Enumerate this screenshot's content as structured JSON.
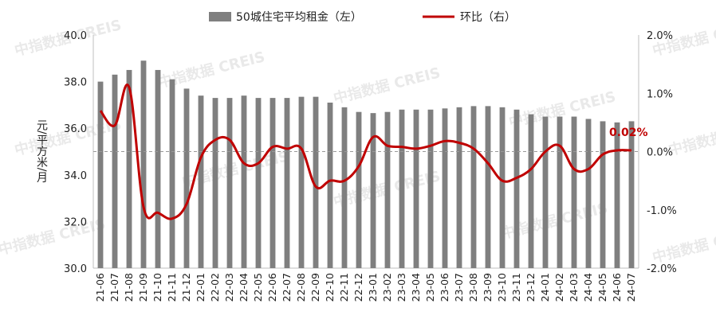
{
  "chart_data": {
    "type": "bar+line",
    "categories": [
      "21-06",
      "21-07",
      "21-08",
      "21-09",
      "21-10",
      "21-11",
      "21-12",
      "22-01",
      "22-02",
      "22-03",
      "22-04",
      "22-05",
      "22-06",
      "22-07",
      "22-08",
      "22-09",
      "22-10",
      "22-11",
      "22-12",
      "23-01",
      "23-02",
      "23-03",
      "23-04",
      "23-05",
      "23-06",
      "23-07",
      "23-08",
      "23-09",
      "23-10",
      "23-11",
      "23-12",
      "24-01",
      "24-02",
      "24-03",
      "24-04",
      "24-05",
      "24-06",
      "24-07"
    ],
    "series": [
      {
        "name": "50城住宅平均租金（左）",
        "type": "bar",
        "axis": "left",
        "color": "#7f7f7f",
        "values": [
          38.0,
          38.3,
          38.5,
          38.9,
          38.5,
          38.1,
          37.7,
          37.4,
          37.3,
          37.3,
          37.4,
          37.3,
          37.3,
          37.3,
          37.35,
          37.35,
          37.1,
          36.9,
          36.7,
          36.65,
          36.7,
          36.8,
          36.8,
          36.8,
          36.85,
          36.9,
          36.95,
          36.95,
          36.9,
          36.8,
          36.6,
          36.5,
          36.5,
          36.5,
          36.4,
          36.3,
          36.25,
          36.3
        ]
      },
      {
        "name": "环比（右）",
        "type": "line",
        "axis": "right",
        "color": "#c00000",
        "values": [
          0.7,
          0.45,
          1.1,
          -0.95,
          -1.05,
          -1.15,
          -0.9,
          -0.1,
          0.2,
          0.2,
          -0.2,
          -0.2,
          0.08,
          0.05,
          0.05,
          -0.6,
          -0.5,
          -0.5,
          -0.25,
          0.25,
          0.1,
          0.08,
          0.05,
          0.1,
          0.18,
          0.15,
          0.05,
          -0.2,
          -0.5,
          -0.45,
          -0.3,
          0.0,
          0.1,
          -0.3,
          -0.3,
          -0.05,
          0.02,
          0.02
        ]
      }
    ],
    "y_left": {
      "min": 30.0,
      "max": 40.0,
      "ticks": [
        "30.0",
        "32.0",
        "34.0",
        "36.0",
        "38.0",
        "40.0"
      ],
      "label": "元/平方米/月"
    },
    "y_right": {
      "min": -2.0,
      "max": 2.0,
      "ticks": [
        "-2.0%",
        "-1.0%",
        "0.0%",
        "1.0%",
        "2.0%"
      ]
    },
    "annotation": {
      "text": "0.02%",
      "category": "24-06"
    },
    "legend_position": "top-center",
    "grid": false,
    "zero_line_style": "dashed"
  },
  "watermark": {
    "text": "中指数据 CREIS"
  },
  "colors": {
    "bar": "#7f7f7f",
    "line": "#c00000",
    "axis": "#bfbfbf",
    "zero": "#999999"
  }
}
